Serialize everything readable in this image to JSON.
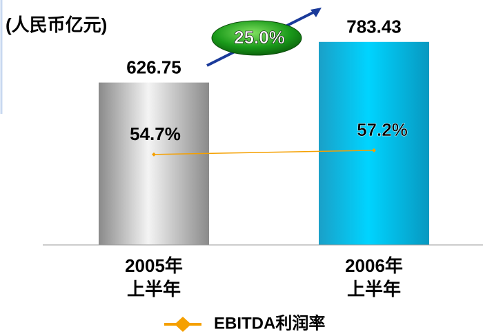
{
  "chart_data": {
    "type": "bar",
    "subtitle": "(人民币亿元)",
    "categories": [
      "2005年\n上半年",
      "2006年\n上半年"
    ],
    "values": [
      626.75,
      783.43
    ],
    "colors": [
      "#a0a0a0",
      "#00c8f0"
    ],
    "ylim": [
      0,
      900
    ],
    "series": [
      {
        "name": "EBITDA利润率",
        "color": "#f5a000",
        "axis": "y2",
        "values": [
          54.7,
          57.2
        ],
        "value_labels": [
          "54.7%",
          "57.2%"
        ]
      }
    ],
    "y2lim": [
      0,
      141
    ],
    "annotations": [
      "25.0%"
    ],
    "legend": "bottom"
  }
}
